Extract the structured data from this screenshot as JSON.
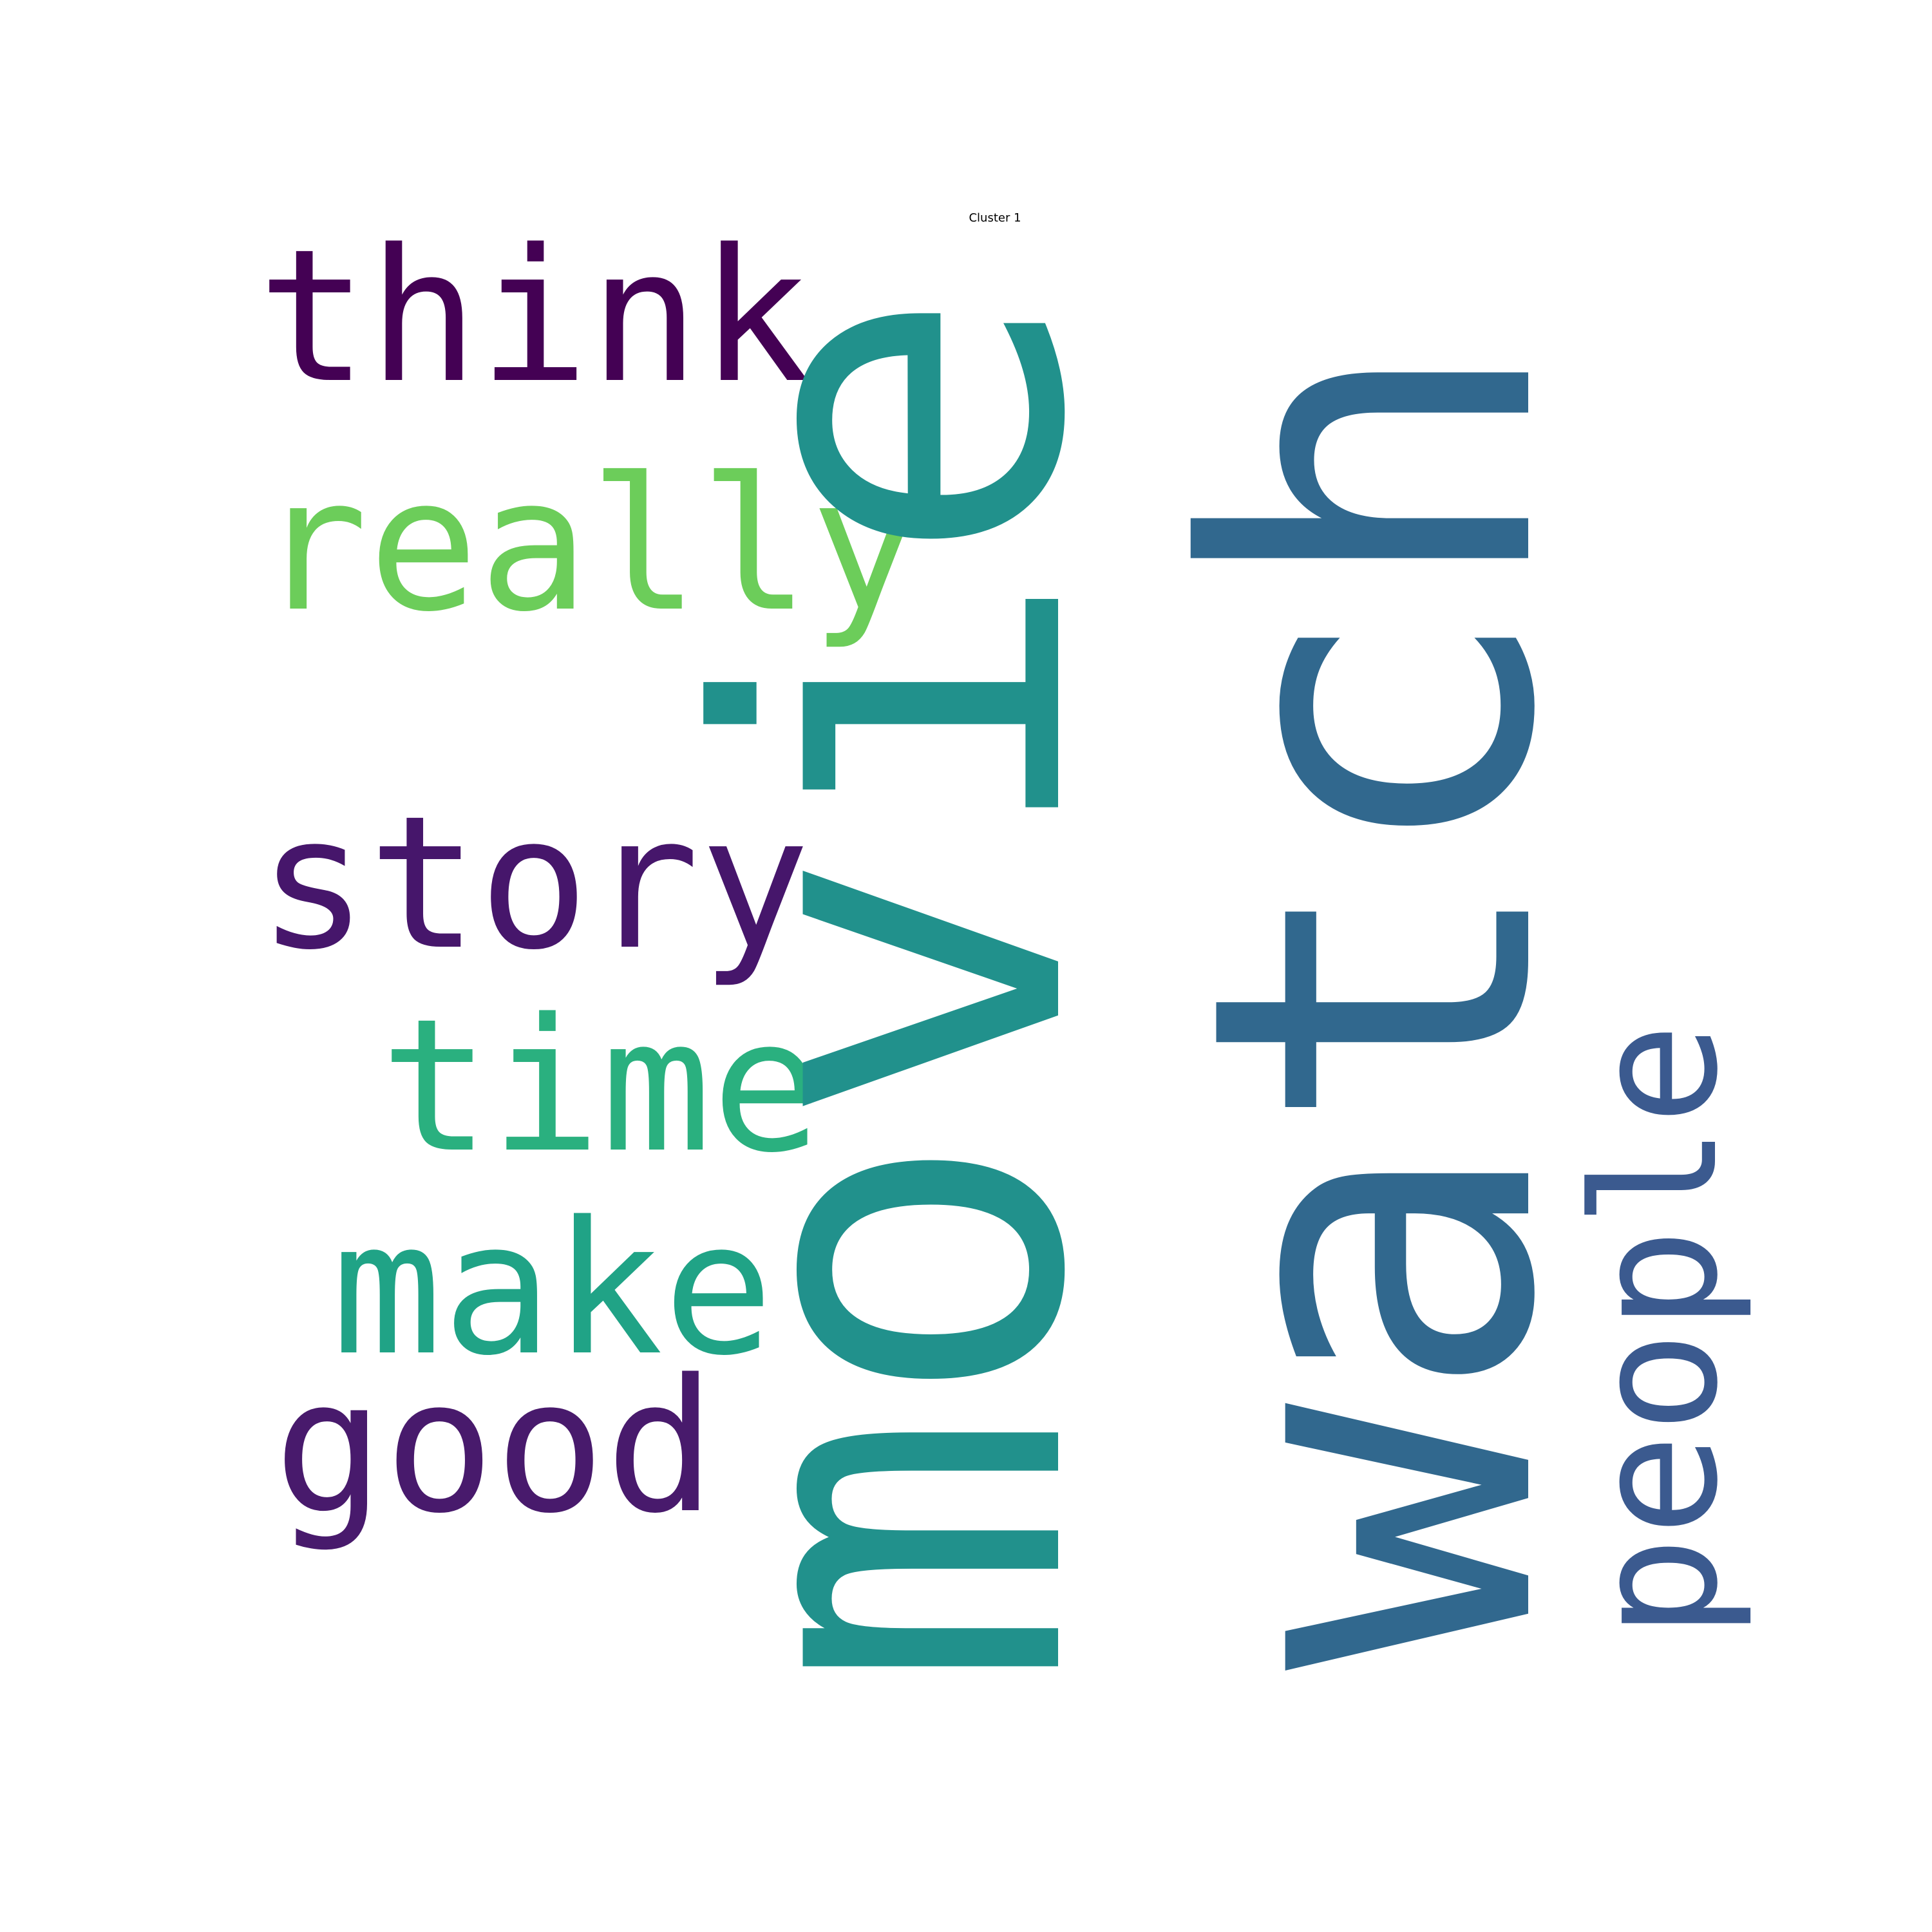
{
  "title": "Cluster 1",
  "words": {
    "movie": {
      "text": "movie",
      "color": "#21918c"
    },
    "watch": {
      "text": "watch",
      "color": "#31688e"
    },
    "think": {
      "text": "think",
      "color": "#440154"
    },
    "really": {
      "text": "really",
      "color": "#6ccd5a"
    },
    "story": {
      "text": "story",
      "color": "#46166b"
    },
    "time": {
      "text": "time",
      "color": "#2ab07f"
    },
    "make": {
      "text": "make",
      "color": "#20a386"
    },
    "good": {
      "text": "good",
      "color": "#481a6c"
    },
    "people": {
      "text": "people",
      "color": "#3b5a8f"
    }
  }
}
